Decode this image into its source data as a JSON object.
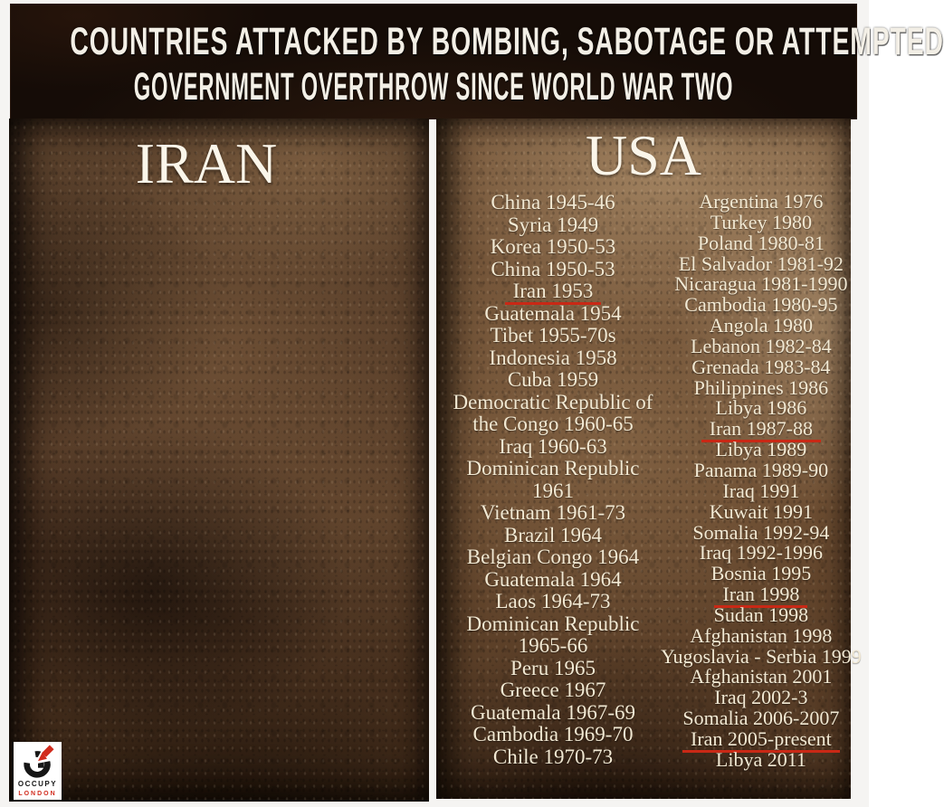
{
  "banner": {
    "line1": "COUNTRIES ATTACKED BY BOMBING, SABOTAGE OR ATTEMPTED",
    "line2": "GOVERNMENT OVERTHROW SINCE WORLD WAR TWO"
  },
  "iran_panel": {
    "title": "IRAN"
  },
  "usa_panel": {
    "title": "USA",
    "column1": [
      {
        "t": "China 1945-46"
      },
      {
        "t": "Syria 1949"
      },
      {
        "t": "Korea 1950-53"
      },
      {
        "t": "China 1950-53"
      },
      {
        "t": "Iran 1953",
        "u": true
      },
      {
        "t": "Guatemala 1954"
      },
      {
        "t": "Tibet 1955-70s"
      },
      {
        "t": "Indonesia 1958"
      },
      {
        "t": "Cuba 1959"
      },
      {
        "t": "Democratic Republic of the Congo 1960-65"
      },
      {
        "t": "Iraq 1960-63"
      },
      {
        "t": "Dominican Republic 1961"
      },
      {
        "t": "Vietnam 1961-73"
      },
      {
        "t": "Brazil 1964"
      },
      {
        "t": "Belgian Congo 1964"
      },
      {
        "t": "Guatemala 1964"
      },
      {
        "t": "Laos 1964-73"
      },
      {
        "t": "Dominican Republic 1965-66"
      },
      {
        "t": "Peru 1965"
      },
      {
        "t": "Greece 1967"
      },
      {
        "t": "Guatemala 1967-69"
      },
      {
        "t": "Cambodia 1969-70"
      },
      {
        "t": "Chile 1970-73"
      }
    ],
    "column2": [
      {
        "t": "Argentina 1976"
      },
      {
        "t": "Turkey 1980"
      },
      {
        "t": "Poland 1980-81"
      },
      {
        "t": "El Salvador 1981-92"
      },
      {
        "t": "Nicaragua 1981-1990"
      },
      {
        "t": "Cambodia 1980-95"
      },
      {
        "t": "Angola 1980"
      },
      {
        "t": "Lebanon 1982-84"
      },
      {
        "t": "Grenada 1983-84"
      },
      {
        "t": "Philippines 1986"
      },
      {
        "t": "Libya 1986"
      },
      {
        "t": "Iran 1987-88",
        "u": true
      },
      {
        "t": "Libya 1989"
      },
      {
        "t": "Panama 1989-90"
      },
      {
        "t": "Iraq 1991"
      },
      {
        "t": "Kuwait 1991"
      },
      {
        "t": "Somalia 1992-94"
      },
      {
        "t": "Iraq 1992-1996"
      },
      {
        "t": "Bosnia 1995"
      },
      {
        "t": "Iran 1998",
        "u": true
      },
      {
        "t": "Sudan 1998"
      },
      {
        "t": "Afghanistan 1998"
      },
      {
        "t": "Yugoslavia - Serbia 1999"
      },
      {
        "t": "Afghanistan 2001"
      },
      {
        "t": "Iraq 2002-3"
      },
      {
        "t": "Somalia 2006-2007"
      },
      {
        "t": "Iran 2005-present",
        "u": true
      },
      {
        "t": "Libya 2011"
      }
    ]
  },
  "logo": {
    "line1": "OCCUPY",
    "line2": "LONDON"
  },
  "colors": {
    "underline_red": "#c92815",
    "banner_bg": "#150c07",
    "text_cream": "#f2e9d3",
    "heading_white": "#fbf6ea",
    "logo_red": "#d12c1e"
  }
}
